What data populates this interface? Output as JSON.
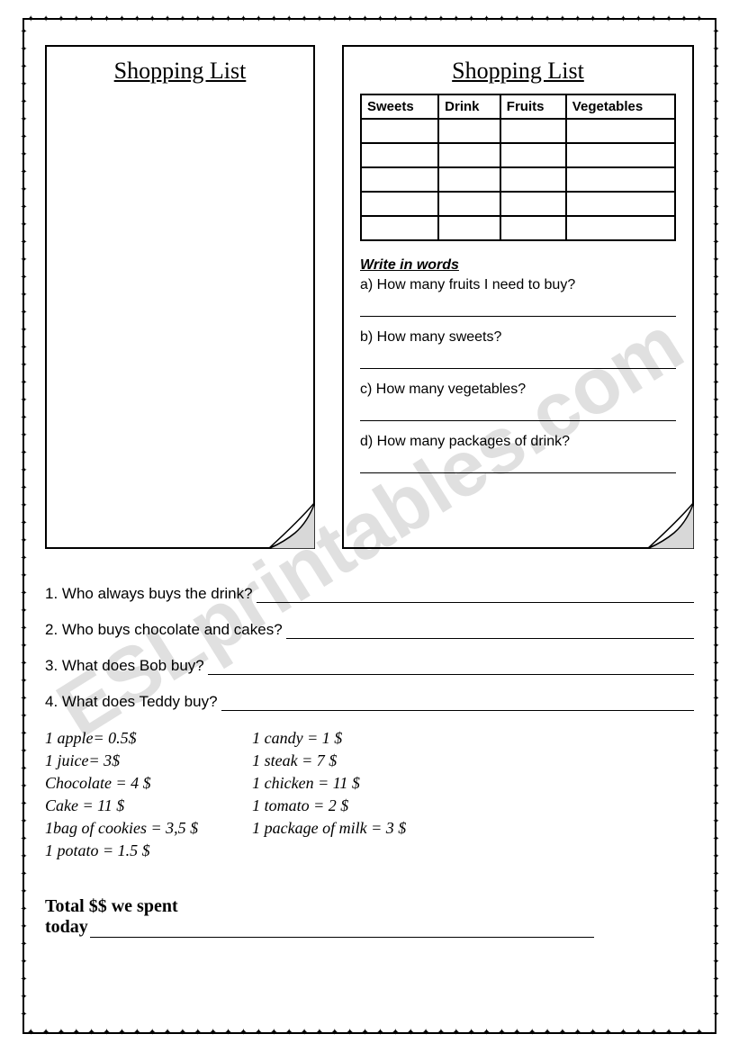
{
  "border_pattern": "✦ ✦ ✦ ✦ ✦ ✦ ✦ ✦ ✦ ✦ ✦ ✦ ✦ ✦ ✦ ✦ ✦ ✦ ✦ ✦ ✦ ✦ ✦ ✦ ✦ ✦ ✦ ✦ ✦ ✦ ✦ ✦ ✦ ✦ ✦ ✦ ✦ ✦ ✦ ✦ ✦ ✦ ✦ ✦ ✦ ✦ ✦ ✦ ✦ ✦ ✦ ✦ ✦ ✦ ✦ ✦ ✦ ✦ ✦ ✦ ✦ ✦ ✦ ✦ ✦ ✦ ✦ ✦ ✦ ✦ ✦ ✦ ✦ ✦ ✦ ✦ ✦ ✦ ✦ ✦",
  "watermark": "ESLprintables.com",
  "left_sheet": {
    "title": "Shopping List"
  },
  "right_sheet": {
    "title": "Shopping List",
    "table": {
      "columns": [
        "Sweets",
        "Drink",
        "Fruits",
        "Vegetables"
      ],
      "rows": 5
    },
    "write_heading": "Write in words",
    "questions": [
      "a) How many fruits I need to buy?",
      "b) How many sweets?",
      "c) How many vegetables?",
      "d) How many packages of drink?"
    ]
  },
  "bottom_questions": [
    "1. Who always buys the drink?",
    "2. Who buys chocolate and cakes?",
    "3. What does Bob buy?",
    "4. What does Teddy buy?"
  ],
  "prices": {
    "col1": [
      "1 apple= 0.5$",
      "1 juice= 3$",
      "Chocolate = 4 $",
      "Cake = 11 $",
      "1bag of cookies = 3,5 $",
      "1 potato = 1.5 $"
    ],
    "col2": [
      "1 candy = 1 $",
      "1 steak = 7 $",
      "1 chicken = 11 $",
      "1 tomato = 2 $",
      "1 package of milk = 3 $"
    ]
  },
  "total": {
    "label1": "Total $$ we spent",
    "label2": "today"
  }
}
